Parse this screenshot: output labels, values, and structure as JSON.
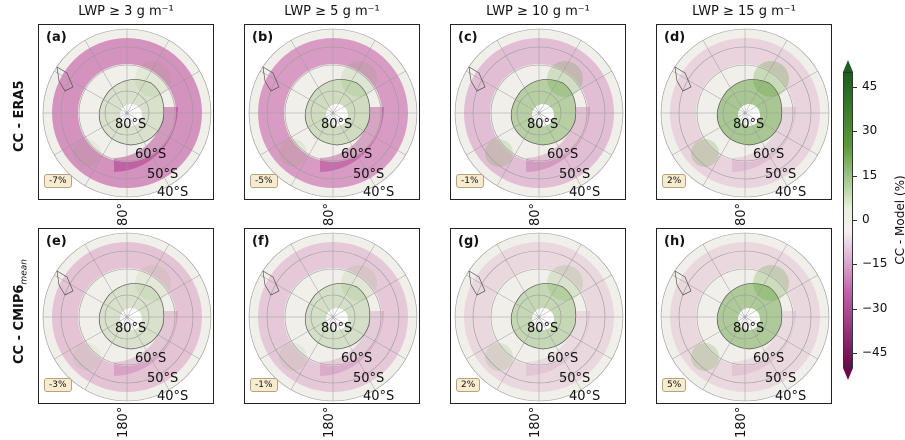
{
  "column_titles": [
    "LWP ≥ 3 g m⁻¹",
    "LWP ≥ 5 g m⁻¹",
    "LWP ≥ 10 g m⁻¹",
    "LWP ≥ 15 g m⁻¹"
  ],
  "row_titles": [
    "CC - ERA5",
    "CC - CMIP6"
  ],
  "row_title_subscript": "mean",
  "panels": [
    {
      "label": "(a)",
      "badge": "-7%",
      "lon_label": "80°",
      "magenta": 0.85,
      "green": 0.25
    },
    {
      "label": "(b)",
      "badge": "-5%",
      "lon_label": "80°",
      "magenta": 0.75,
      "green": 0.35
    },
    {
      "label": "(c)",
      "badge": "-1%",
      "lon_label": "80°",
      "magenta": 0.45,
      "green": 0.6
    },
    {
      "label": "(d)",
      "badge": "2%",
      "lon_label": "80°",
      "magenta": 0.25,
      "green": 0.75
    },
    {
      "label": "(e)",
      "badge": "-3%",
      "lon_label": "180°",
      "magenta": 0.4,
      "green": 0.25
    },
    {
      "label": "(f)",
      "badge": "-1%",
      "lon_label": "180°",
      "magenta": 0.35,
      "green": 0.3
    },
    {
      "label": "(g)",
      "badge": "2%",
      "lon_label": "180°",
      "magenta": 0.2,
      "green": 0.45
    },
    {
      "label": "(h)",
      "badge": "5%",
      "lon_label": "180°",
      "magenta": 0.2,
      "green": 0.7
    }
  ],
  "lat_labels": [
    "80°S",
    "60°S",
    "50°S",
    "40°S"
  ],
  "colorbar": {
    "label": "CC - Model (%)",
    "ticks": [
      "45",
      "30",
      "15",
      "0",
      "−15",
      "−30",
      "−45"
    ],
    "min": -50,
    "max": 50,
    "high_color": "#1b5e20",
    "low_color": "#6a0a4a"
  }
}
